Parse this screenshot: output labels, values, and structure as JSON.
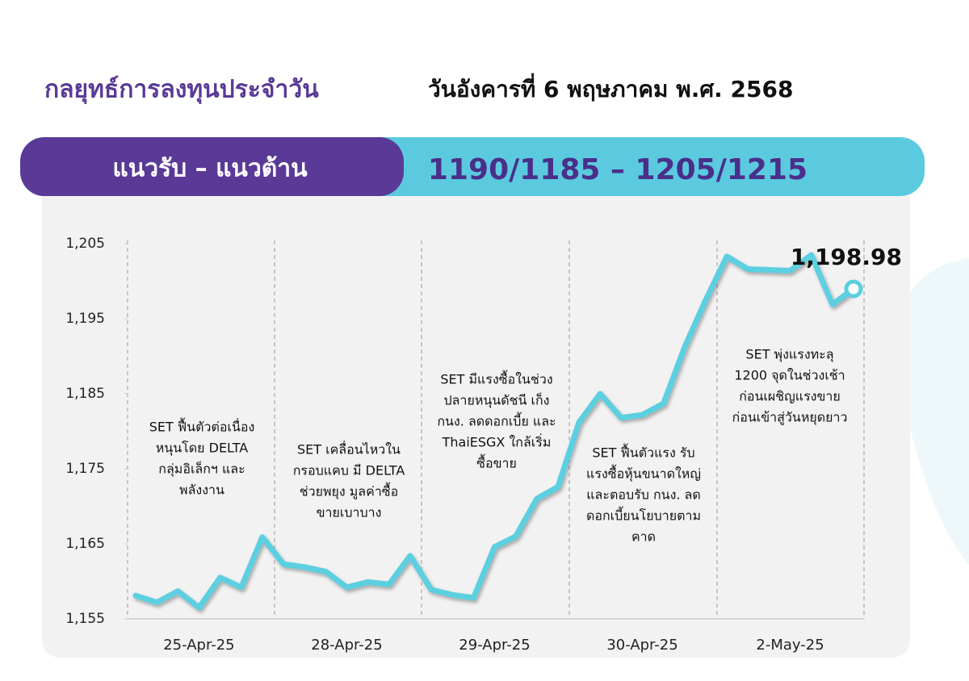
{
  "header": {
    "title": "กลยุทธ์การลงทุนประจำวัน",
    "date": "วันอังคารที่ 6 พฤษภาคม พ.ศ. 2568",
    "range_label": "แนวรับ – แนวต้าน",
    "range_value": "1190/1185 – 1205/1215"
  },
  "chart_data": {
    "type": "line",
    "categories": [
      null,
      null,
      null,
      "25-Apr-25",
      null,
      null,
      null,
      null,
      null,
      null,
      "28-Apr-25",
      null,
      null,
      null,
      null,
      null,
      null,
      "29-Apr-25",
      null,
      null,
      null,
      null,
      null,
      null,
      "30-Apr-25",
      null,
      null,
      null,
      null,
      null,
      null,
      "2-May-25",
      null,
      null,
      null
    ],
    "series": [
      {
        "name": "SET",
        "color": "#5bcfe0",
        "values": [
          1158.1,
          1157.2,
          1158.7,
          1156.5,
          1160.5,
          1159.2,
          1165.9,
          1162.3,
          1161.9,
          1161.3,
          1159.2,
          1159.9,
          1159.6,
          1163.4,
          1158.9,
          1158.2,
          1157.8,
          1164.6,
          1166.0,
          1171.0,
          1172.6,
          1181.2,
          1185.0,
          1181.8,
          1182.2,
          1183.7,
          1191.2,
          1197.5,
          1203.3,
          1201.6,
          1201.5,
          1201.4,
          1203.5,
          1196.9,
          1198.98
        ]
      }
    ],
    "value_labels": [
      null,
      null,
      null,
      null,
      null,
      null,
      null,
      null,
      null,
      null,
      null,
      null,
      null,
      null,
      null,
      null,
      null,
      null,
      null,
      null,
      null,
      null,
      null,
      null,
      null,
      null,
      null,
      null,
      null,
      null,
      null,
      null,
      null,
      null,
      "1,198.98"
    ],
    "ylim": [
      1155,
      1205
    ],
    "yticks": [
      {
        "value": 1155,
        "label": "1,155"
      },
      {
        "value": 1165,
        "label": "1,165"
      },
      {
        "value": 1175,
        "label": "1,175"
      },
      {
        "value": 1185,
        "label": "1,185"
      },
      {
        "value": 1195,
        "label": "1,195"
      },
      {
        "value": 1205,
        "label": "1,205"
      }
    ],
    "grid": false,
    "annotations": [
      [
        "SET ฟื้นตัวต่อเนื่อง",
        "หนุนโดย DELTA",
        "กลุ่มอิเล็กฯ และ",
        "พลังงาน"
      ],
      [
        "SET เคลื่อนไหวใน",
        "กรอบแคบ มี DELTA",
        "ช่วยพยุง มูลค่าซื้อ",
        "ขายเบาบาง"
      ],
      [
        "SET มีแรงซื้อในช่วง",
        "ปลายหนุนดัชนี เก็ง",
        "กนง. ลดดอกเบี้ย และ",
        "ThaiESGX ใกล้เริ่ม",
        "ซื้อขาย"
      ],
      [
        "SET ฟื้นตัวแรง รับ",
        "แรงซื้อหุ้นขนาดใหญ่",
        "และตอบรับ กนง. ลด",
        "ดอกเบี้ยนโยบายตาม",
        "คาด"
      ],
      [
        "SET พุ่งแรงทะลุ",
        "1200 จุดในช่วงเช้า",
        "ก่อนเผชิญแรงขาย",
        "ก่อนเข้าสู่วันหยุดยาว"
      ]
    ]
  }
}
